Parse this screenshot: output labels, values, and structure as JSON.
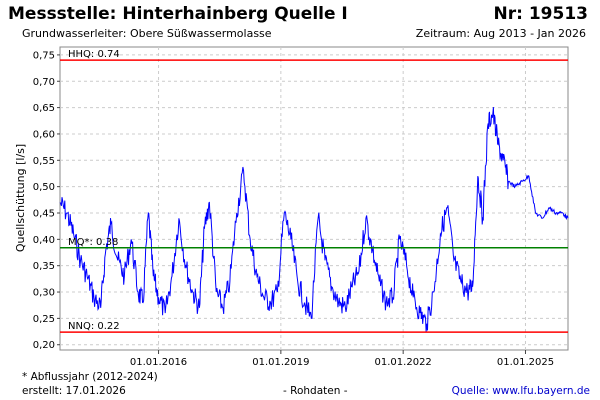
{
  "header": {
    "title": "Messstelle: Hinterhainberg Quelle I",
    "number": "Nr: 19513",
    "aquifer": "Grundwasserleiter:   Obere Süßwassermolasse",
    "period": "Zeitraum: Aug 2013 - Jan 2026"
  },
  "footer": {
    "note": "* Abflussjahr (2012-2024)",
    "created": "erstellt:  17.01.2026",
    "raw": "- Rohdaten -",
    "source": "Quelle: www.lfu.bayern.de"
  },
  "colors": {
    "series": "#0000ff",
    "hhq": "#ff0000",
    "nnq": "#ff0000",
    "mq": "#008000",
    "grid": "#cccccc"
  },
  "chart_data": {
    "type": "line",
    "ylabel": "Quellschüttung [l/s]",
    "xlabel": "",
    "xlim": [
      "2013-08-01",
      "2026-01-17"
    ],
    "ylim": [
      0.19,
      0.765
    ],
    "yticks": [
      "0,20",
      "0,25",
      "0,30",
      "0,35",
      "0,40",
      "0,45",
      "0,50",
      "0,55",
      "0,60",
      "0,65",
      "0,70",
      "0,75"
    ],
    "xticks": [
      "01.01.2016",
      "01.01.2019",
      "01.01.2022",
      "01.01.2025"
    ],
    "grid": true,
    "reference_lines": [
      {
        "label": "HHQ: 0.74",
        "value": 0.74
      },
      {
        "label": "MQ*: 0.38",
        "value": 0.384
      },
      {
        "label": "NNQ: 0.22",
        "value": 0.224
      }
    ],
    "series": [
      {
        "x": [
          "2013-08-01",
          "2013-10-01",
          "2013-12-01",
          "2014-02-01",
          "2014-04-01",
          "2014-06-01",
          "2014-08-01",
          "2014-09-15",
          "2014-11-01",
          "2015-01-01",
          "2015-03-01",
          "2015-05-01",
          "2015-07-01",
          "2015-08-15",
          "2015-10-01",
          "2015-11-15",
          "2016-01-01",
          "2016-03-01",
          "2016-05-01",
          "2016-07-01",
          "2016-09-01",
          "2016-11-01",
          "2017-01-01",
          "2017-02-15",
          "2017-04-01",
          "2017-06-01",
          "2017-08-01",
          "2017-10-01",
          "2017-12-01",
          "2018-02-01",
          "2018-04-01",
          "2018-06-01",
          "2018-08-01",
          "2018-10-01",
          "2018-12-01",
          "2019-02-01",
          "2019-04-01",
          "2019-06-01",
          "2019-08-01",
          "2019-10-01",
          "2019-12-01",
          "2020-02-01",
          "2020-04-01",
          "2020-06-01",
          "2020-08-01",
          "2020-10-01",
          "2020-12-01",
          "2021-02-01",
          "2021-04-01",
          "2021-06-01",
          "2021-08-01",
          "2021-10-01",
          "2021-12-01",
          "2022-02-01",
          "2022-04-01",
          "2022-06-01",
          "2022-08-01",
          "2022-10-01",
          "2022-12-01",
          "2023-02-01",
          "2023-04-01",
          "2023-06-01",
          "2023-08-01",
          "2023-09-15",
          "2023-11-01",
          "2023-12-15",
          "2024-02-01",
          "2024-03-15",
          "2024-05-01",
          "2024-06-15",
          "2024-08-01",
          "2024-10-01",
          "2024-12-01",
          "2025-02-01",
          "2025-04-01",
          "2025-06-01",
          "2025-08-01",
          "2025-10-01",
          "2025-12-01",
          "2026-01-17"
        ],
        "values": [
          0.47,
          0.45,
          0.41,
          0.36,
          0.33,
          0.29,
          0.27,
          0.38,
          0.43,
          0.36,
          0.33,
          0.4,
          0.3,
          0.28,
          0.45,
          0.33,
          0.29,
          0.26,
          0.33,
          0.44,
          0.35,
          0.3,
          0.27,
          0.42,
          0.47,
          0.3,
          0.27,
          0.32,
          0.45,
          0.53,
          0.4,
          0.33,
          0.29,
          0.28,
          0.3,
          0.45,
          0.4,
          0.32,
          0.28,
          0.25,
          0.44,
          0.36,
          0.31,
          0.28,
          0.27,
          0.31,
          0.34,
          0.44,
          0.38,
          0.32,
          0.28,
          0.29,
          0.4,
          0.35,
          0.29,
          0.26,
          0.24,
          0.3,
          0.41,
          0.46,
          0.36,
          0.32,
          0.3,
          0.31,
          0.52,
          0.44,
          0.62,
          0.64,
          0.58,
          0.55,
          0.51,
          0.5,
          0.51,
          0.52,
          0.45,
          0.44,
          0.46,
          0.45,
          0.45,
          0.44
        ]
      }
    ]
  }
}
